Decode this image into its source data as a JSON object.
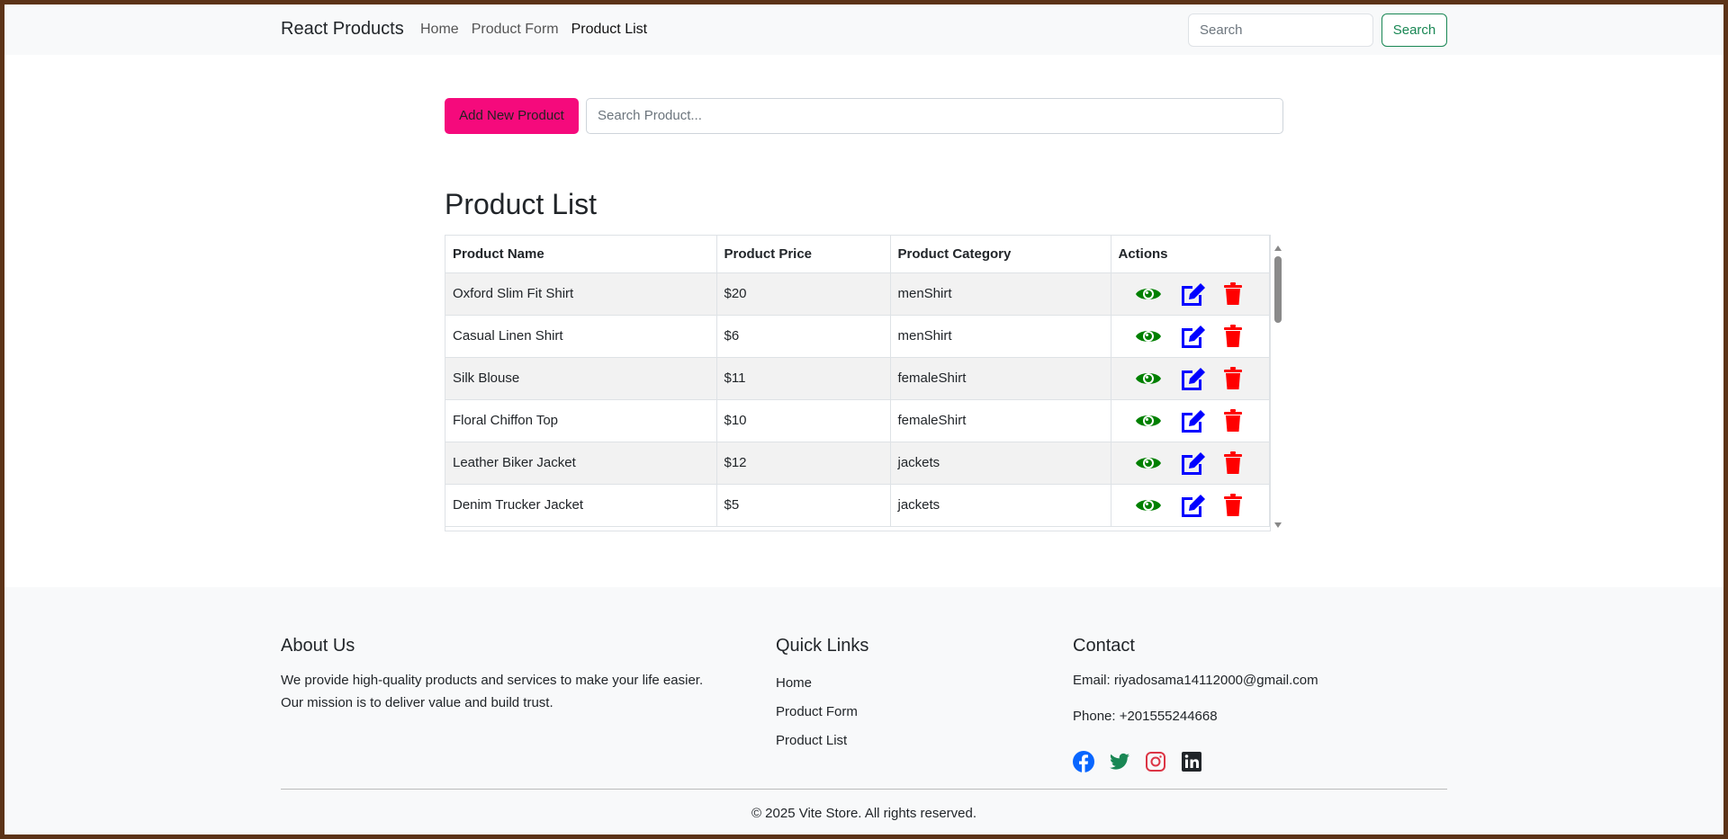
{
  "navbar": {
    "brand": "React Products",
    "links": [
      "Home",
      "Product Form",
      "Product List"
    ],
    "active": "Product List",
    "search_placeholder": "Search",
    "search_button": "Search"
  },
  "toolbar": {
    "add_button": "Add New Product",
    "search_placeholder": "Search Product..."
  },
  "main": {
    "title": "Product List",
    "columns": [
      "Product Name",
      "Product Price",
      "Product Category",
      "Actions"
    ],
    "rows": [
      {
        "name": "Oxford Slim Fit Shirt",
        "price": "$20",
        "category": "menShirt"
      },
      {
        "name": "Casual Linen Shirt",
        "price": "$6",
        "category": "menShirt"
      },
      {
        "name": "Silk Blouse",
        "price": "$11",
        "category": "femaleShirt"
      },
      {
        "name": "Floral Chiffon Top",
        "price": "$10",
        "category": "femaleShirt"
      },
      {
        "name": "Leather Biker Jacket",
        "price": "$12",
        "category": "jackets"
      },
      {
        "name": "Denim Trucker Jacket",
        "price": "$5",
        "category": "jackets"
      }
    ],
    "action_icons": [
      "eye-icon",
      "edit-icon",
      "trash-icon"
    ],
    "colors": {
      "view": "#008000",
      "edit": "#0000ff",
      "delete": "#ff0000",
      "add_button": "#f50a7c"
    }
  },
  "footer": {
    "about": {
      "title": "About Us",
      "text1": "We provide high-quality products and services to make your life easier.",
      "text2": "Our mission is to deliver value and build trust."
    },
    "quick_links": {
      "title": "Quick Links",
      "items": [
        "Home",
        "Product Form",
        "Product List"
      ]
    },
    "contact": {
      "title": "Contact",
      "email": "Email: riyadosama14112000@gmail.com",
      "phone": "Phone: +201555244668",
      "social": [
        "facebook-icon",
        "twitter-icon",
        "instagram-icon",
        "linkedin-icon"
      ]
    },
    "copyright": "© 2025 Vite Store. All rights reserved."
  }
}
